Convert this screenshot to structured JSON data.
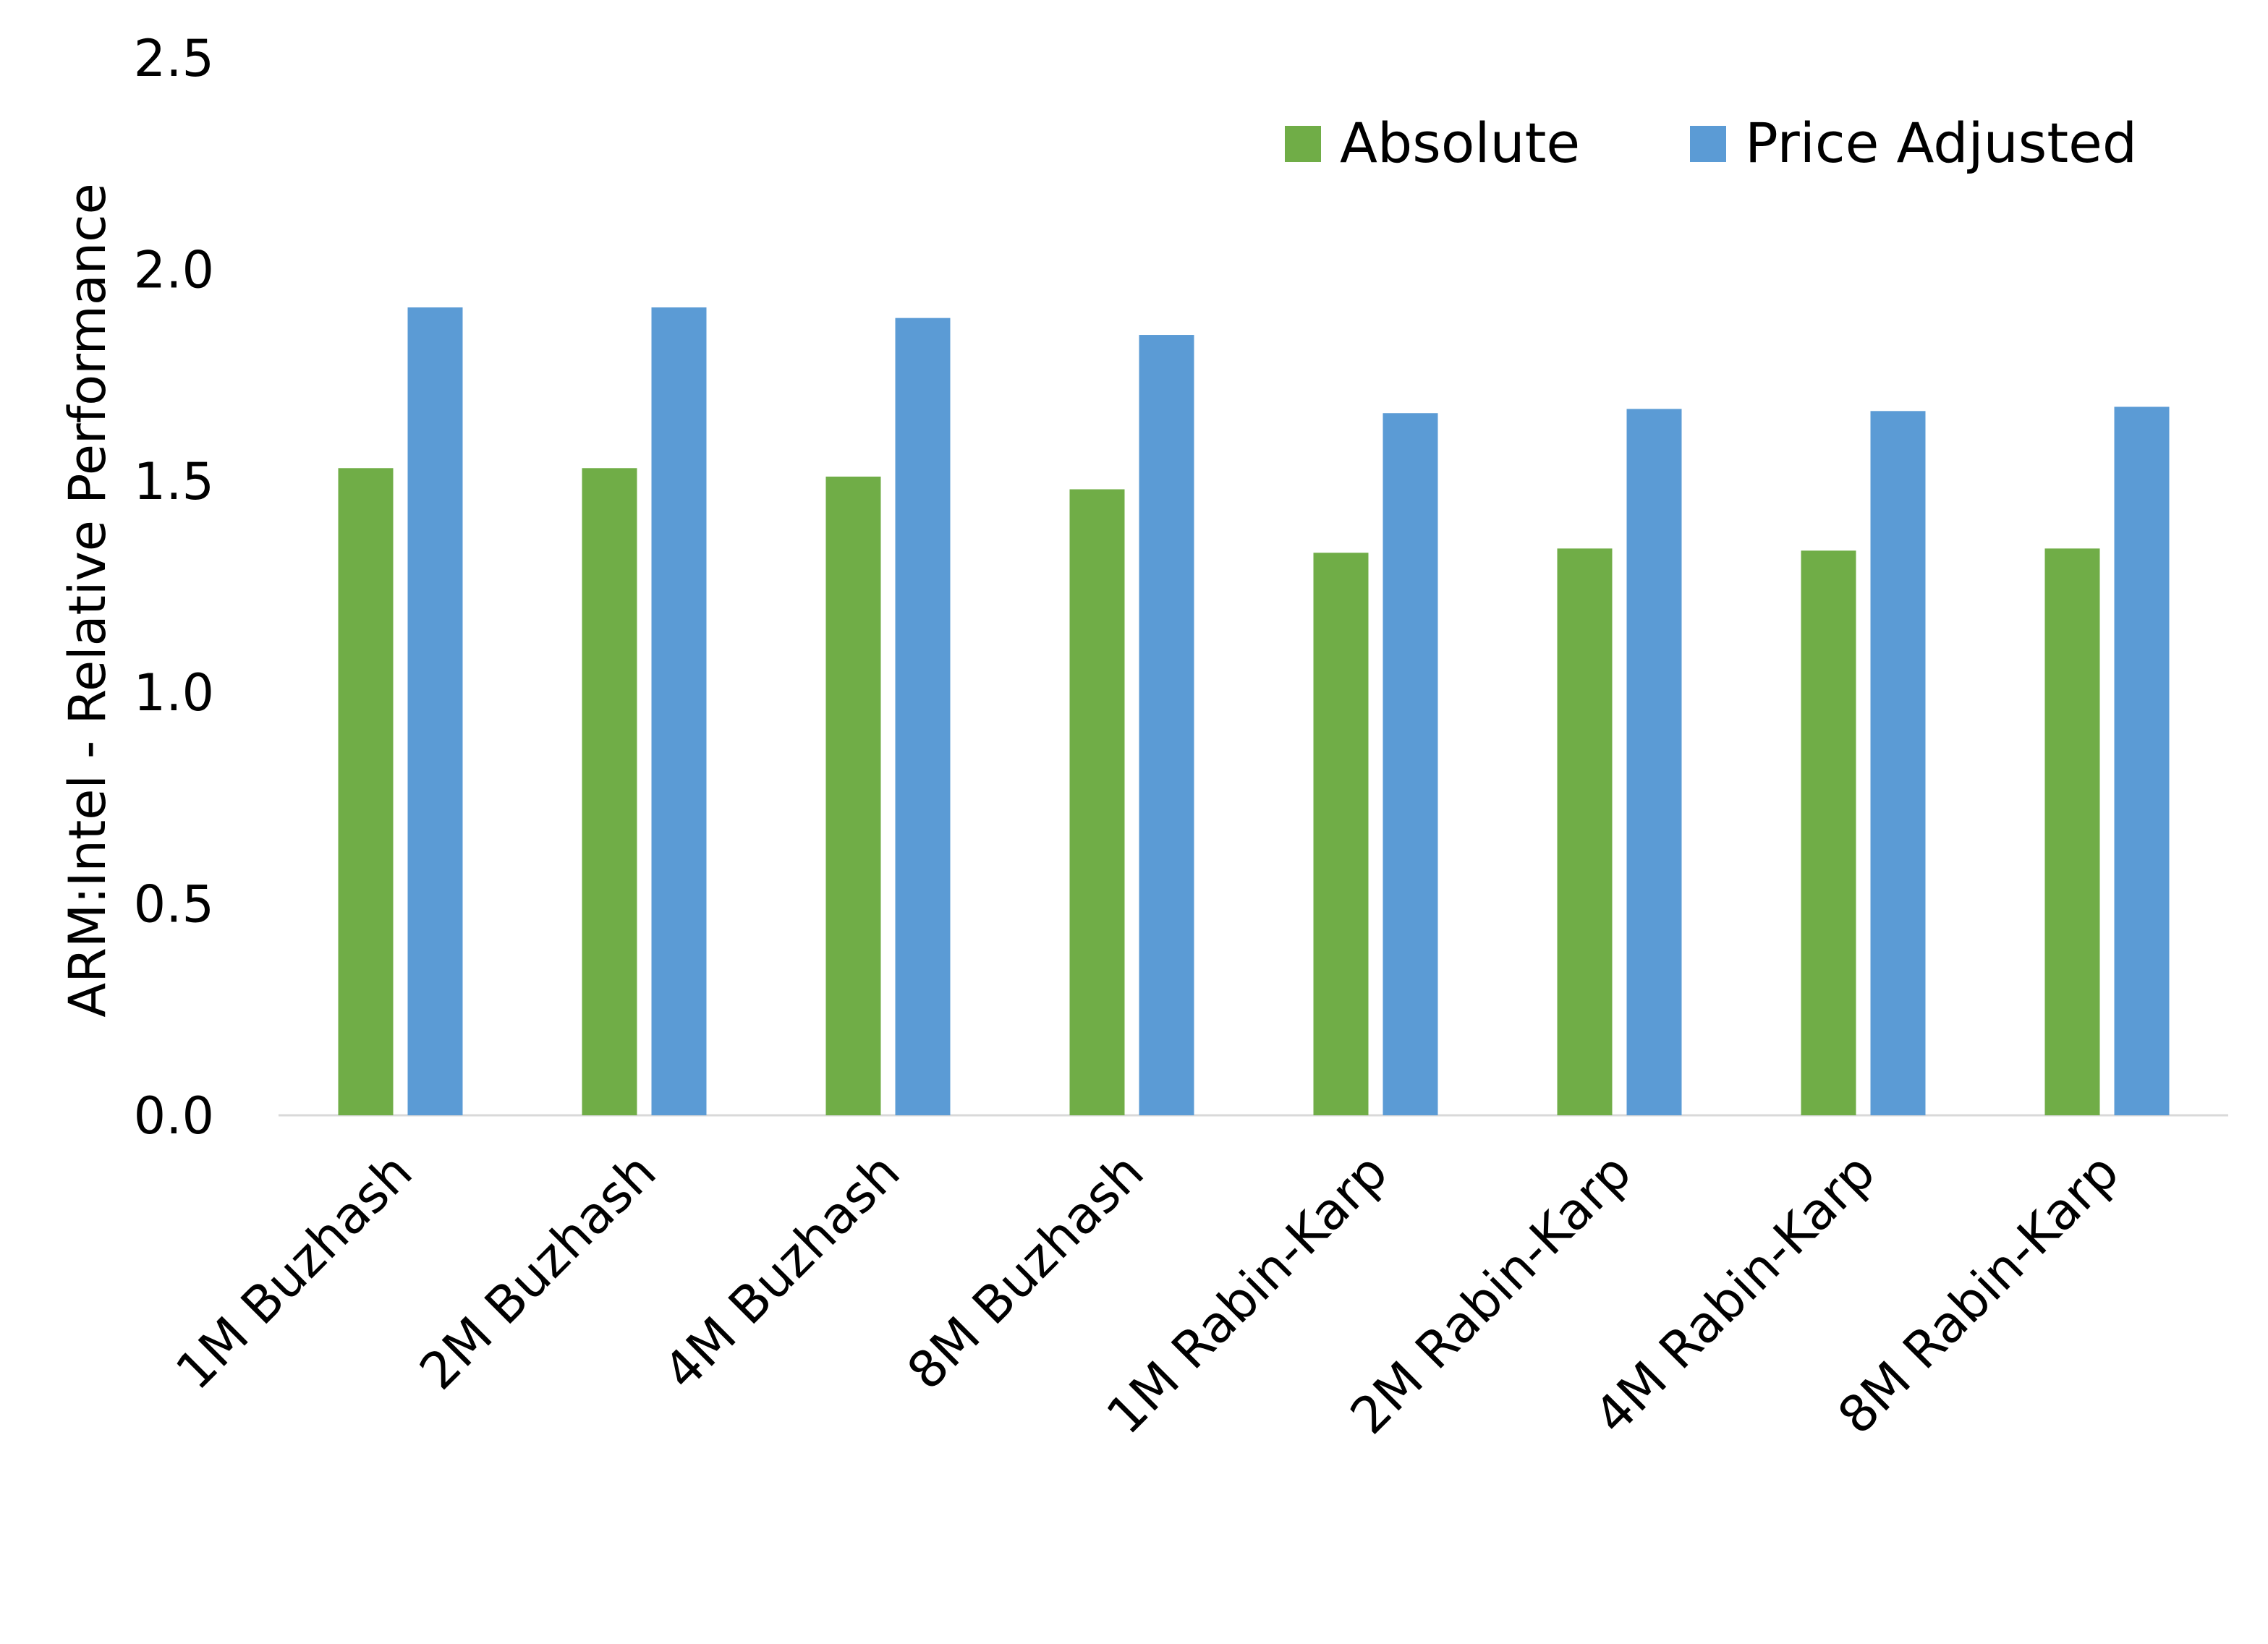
{
  "chart_data": {
    "type": "bar",
    "title": "",
    "xlabel": "",
    "ylabel": "ARM:Intel - Relative Performance",
    "ylim": [
      0,
      2.5
    ],
    "yticks": [
      "0.0",
      "0.5",
      "1.0",
      "1.5",
      "2.0",
      "2.5"
    ],
    "grid": false,
    "legend_position": "top-right",
    "categories": [
      "1M Buzhash",
      "2M Buzhash",
      "4M Buzhash",
      "8M Buzhash",
      "1M Rabin-Karp",
      "2M Rabin-Karp",
      "4M Rabin-Karp",
      "8M Rabin-Karp"
    ],
    "series": [
      {
        "name": "Absolute",
        "color": "#70AD47",
        "values": [
          1.53,
          1.53,
          1.51,
          1.48,
          1.33,
          1.34,
          1.335,
          1.34
        ]
      },
      {
        "name": "Price Adjusted",
        "color": "#5B9BD5",
        "values": [
          1.91,
          1.91,
          1.885,
          1.845,
          1.66,
          1.67,
          1.665,
          1.675
        ]
      }
    ]
  }
}
